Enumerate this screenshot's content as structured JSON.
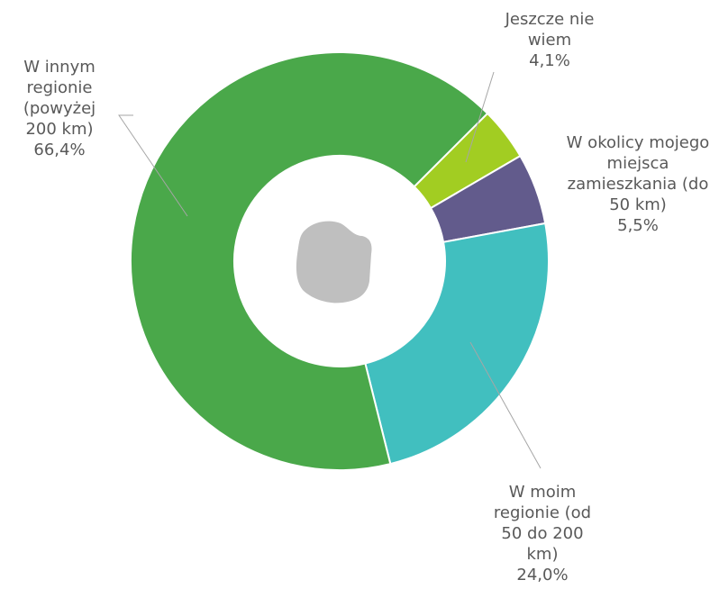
{
  "chart_data": {
    "type": "donut",
    "categories": [
      "Jeszcze nie wiem",
      "W okolicy mojego miejsca zamieszkania (do 50 km)",
      "W moim regionie (od 50 do 200 km)",
      "W innym regionie (powyżej 200 km)"
    ],
    "values": [
      4.1,
      5.5,
      24.0,
      66.4
    ],
    "value_labels": [
      "4,1%",
      "5,5%",
      "24,0%",
      "66,4%"
    ],
    "colors": [
      "#a2cd22",
      "#625b8c",
      "#41bfbf",
      "#4aa84a"
    ]
  }
}
